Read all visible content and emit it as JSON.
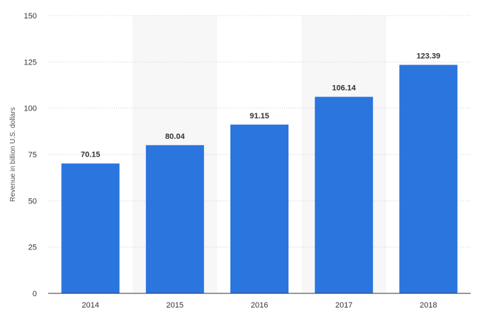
{
  "chart_data": {
    "type": "bar",
    "categories": [
      "2014",
      "2015",
      "2016",
      "2017",
      "2018"
    ],
    "values": [
      70.15,
      80.04,
      91.15,
      106.14,
      123.39
    ],
    "value_labels": [
      "70.15",
      "80.04",
      "91.15",
      "106.14",
      "123.39"
    ],
    "ylabel": "Revenue in billion U.S. dollars",
    "ylim": [
      0,
      150
    ],
    "yticks": [
      0,
      25,
      50,
      75,
      100,
      125,
      150
    ],
    "grid": true,
    "bar_color": "#2b75de",
    "band_color": "#f7f7f7"
  }
}
